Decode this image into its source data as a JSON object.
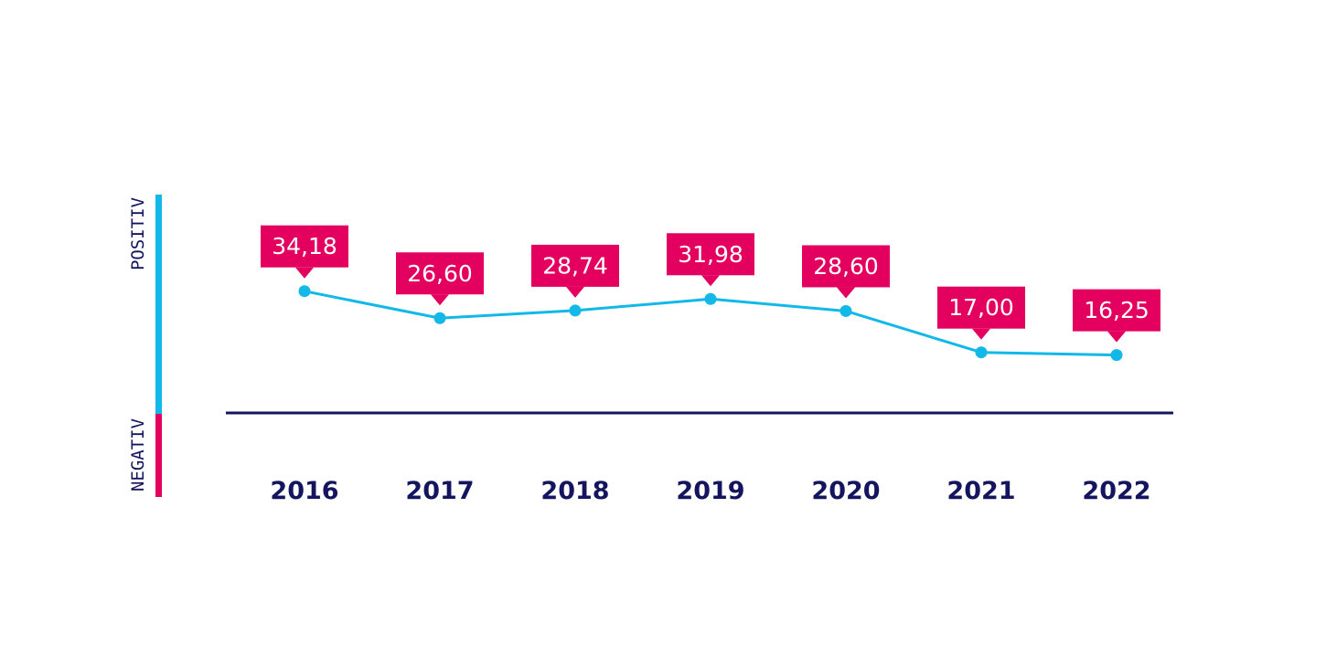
{
  "colors": {
    "line": "#12b8e8",
    "label_bg": "#e3005f",
    "label_text": "#ffffff",
    "baseline": "#14155e",
    "axis_text": "#14155e",
    "positive_bar": "#12b8e8",
    "negative_bar": "#e3005f"
  },
  "scale": {
    "positive_label": "POSITIV",
    "negative_label": "NEGATIV"
  },
  "chart_data": {
    "type": "line",
    "x": [
      "2016",
      "2017",
      "2018",
      "2019",
      "2020",
      "2021",
      "2022"
    ],
    "values": [
      34.18,
      26.6,
      28.74,
      31.98,
      28.6,
      17.0,
      16.25
    ],
    "value_labels": [
      "34,18",
      "26,60",
      "28,74",
      "31,98",
      "28,60",
      "17,00",
      "16,25"
    ],
    "ylim": [
      -15,
      40
    ],
    "grid": false,
    "legend": "none"
  }
}
